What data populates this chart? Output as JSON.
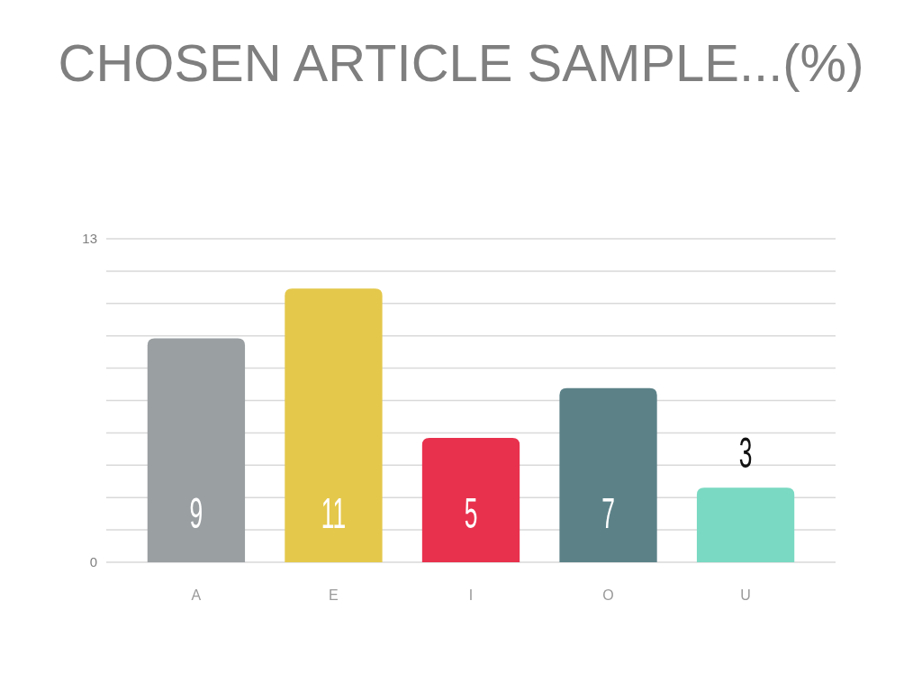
{
  "chart_data": {
    "type": "bar",
    "title": "CHOSEN ARTICLE SAMPLE...(%)",
    "categories": [
      "A",
      "E",
      "I",
      "O",
      "U"
    ],
    "values": [
      9,
      11,
      5,
      7,
      3
    ],
    "colors": [
      "#9a9fa2",
      "#e4c84c",
      "#e8314d",
      "#5c8288",
      "#7ad9c2"
    ],
    "ylim": [
      0,
      13
    ],
    "yticks": [
      0,
      {
        "value": 1.3,
        "label": null
      },
      {
        "value": 2.6,
        "label": null
      },
      {
        "value": 3.9,
        "label": null
      },
      {
        "value": 5.2,
        "label": null
      },
      {
        "value": 6.5,
        "label": null
      },
      {
        "value": 7.8,
        "label": null
      },
      {
        "value": 9.1,
        "label": null
      },
      {
        "value": 10.4,
        "label": null
      },
      {
        "value": 11.7,
        "label": null
      },
      13
    ],
    "grid": true,
    "data_labels": true
  }
}
